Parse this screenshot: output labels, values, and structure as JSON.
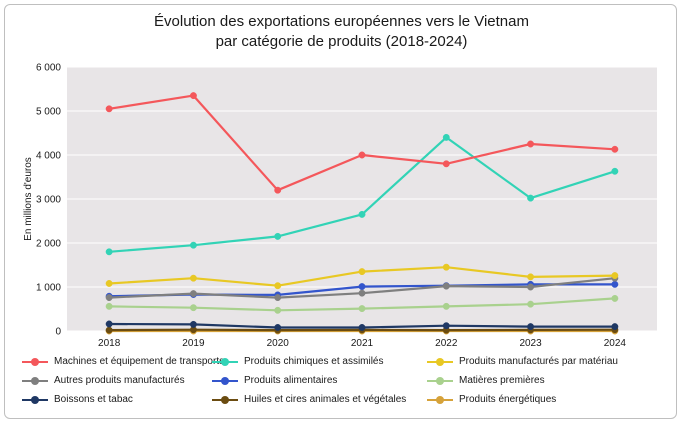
{
  "chart_data": {
    "type": "line",
    "title_line1": "Évolution des exportations européennes vers le Vietnam",
    "title_line2": "par catégorie de produits (2018-2024)",
    "xlabel": "",
    "ylabel": "En millions d'euros",
    "ylim": [
      0,
      6000
    ],
    "yticks": [
      0,
      1000,
      2000,
      3000,
      4000,
      5000,
      6000
    ],
    "ytick_labels": [
      "0",
      "1 000",
      "2 000",
      "3 000",
      "4 000",
      "5 000",
      "6 000"
    ],
    "categories": [
      "2018",
      "2019",
      "2020",
      "2021",
      "2022",
      "2023",
      "2024"
    ],
    "grid": true,
    "legend_position": "bottom",
    "series": [
      {
        "name": "Machines et équipement de transports",
        "color": "#f4575b",
        "values": [
          5050,
          5350,
          3200,
          4000,
          3800,
          4250,
          4130
        ]
      },
      {
        "name": "Produits chimiques et assimilés",
        "color": "#32d3b6",
        "values": [
          1800,
          1950,
          2150,
          2650,
          4400,
          3020,
          3630
        ]
      },
      {
        "name": "Produits manufacturés par matériau",
        "color": "#e8c824",
        "values": [
          1080,
          1200,
          1030,
          1350,
          1450,
          1230,
          1260
        ]
      },
      {
        "name": "Autres produits manufacturés",
        "color": "#7f7f7f",
        "values": [
          760,
          850,
          760,
          860,
          1020,
          1000,
          1200
        ]
      },
      {
        "name": "Produits alimentaires",
        "color": "#3355cc",
        "values": [
          790,
          830,
          820,
          1010,
          1030,
          1060,
          1060
        ]
      },
      {
        "name": "Matières premières",
        "color": "#a9d18e",
        "values": [
          560,
          530,
          470,
          510,
          560,
          610,
          740
        ]
      },
      {
        "name": "Boissons et tabac",
        "color": "#1f3864",
        "values": [
          160,
          150,
          80,
          80,
          120,
          100,
          100
        ]
      },
      {
        "name": "Huiles et cires animales et végétales",
        "color": "#6b4c11",
        "values": [
          20,
          30,
          20,
          25,
          20,
          25,
          30
        ]
      },
      {
        "name": "Produits énergétiques",
        "color": "#d6a23a",
        "values": [
          0,
          0,
          0,
          0,
          0,
          0,
          0
        ]
      }
    ]
  }
}
